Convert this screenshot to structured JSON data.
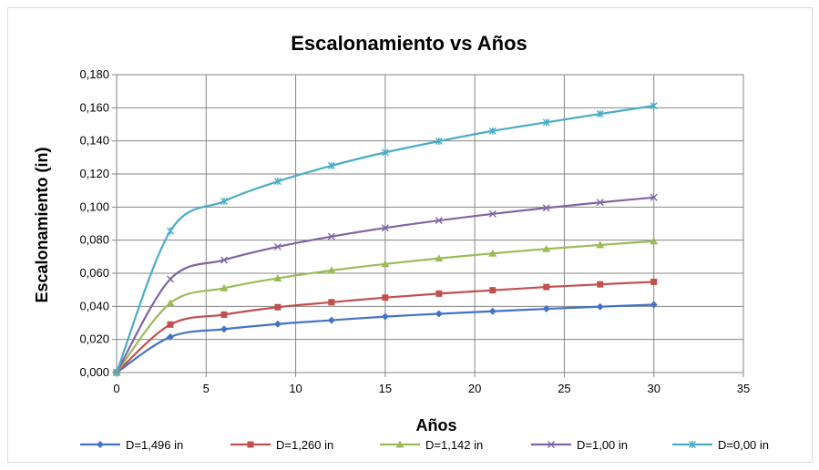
{
  "chart_data": {
    "type": "line",
    "title": "Escalonamiento vs Años",
    "xlabel": "Años",
    "ylabel": "Escalonamiento (in)",
    "xlim": [
      0,
      35
    ],
    "ylim": [
      0,
      0.18
    ],
    "x_ticks": [
      "0",
      "5",
      "10",
      "15",
      "20",
      "25",
      "30",
      "35"
    ],
    "y_ticks": [
      "0,000",
      "0,020",
      "0,040",
      "0,060",
      "0,080",
      "0,100",
      "0,120",
      "0,140",
      "0,160",
      "0,180"
    ],
    "grid": true,
    "legend_position": "bottom",
    "x": [
      0,
      3,
      6,
      9,
      12,
      15,
      18,
      21,
      24,
      27,
      30
    ],
    "series": [
      {
        "name": "D=1,496 in",
        "color": "#4472c4",
        "marker": "diamond",
        "values": [
          0.0,
          0.0215,
          0.0262,
          0.0293,
          0.0316,
          0.0338,
          0.0355,
          0.037,
          0.0385,
          0.0398,
          0.041
        ]
      },
      {
        "name": "D=1,260 in",
        "color": "#c0504d",
        "marker": "square",
        "values": [
          0.0,
          0.029,
          0.035,
          0.0395,
          0.0425,
          0.0453,
          0.0477,
          0.0497,
          0.0517,
          0.0533,
          0.0548
        ]
      },
      {
        "name": "D=1,142 in",
        "color": "#9bbb59",
        "marker": "triangle",
        "values": [
          0.0,
          0.042,
          0.051,
          0.057,
          0.0617,
          0.0656,
          0.069,
          0.072,
          0.0747,
          0.0771,
          0.0794
        ]
      },
      {
        "name": "D=1,00 in",
        "color": "#8064a2",
        "marker": "x",
        "values": [
          0.0,
          0.0565,
          0.068,
          0.076,
          0.0822,
          0.0874,
          0.0919,
          0.0959,
          0.0995,
          0.1028,
          0.1058
        ]
      },
      {
        "name": "D=0,00 in",
        "color": "#4bacc6",
        "marker": "asterisk",
        "values": [
          0.0,
          0.0855,
          0.1035,
          0.1155,
          0.125,
          0.133,
          0.1398,
          0.146,
          0.1512,
          0.1563,
          0.1612
        ]
      }
    ]
  }
}
